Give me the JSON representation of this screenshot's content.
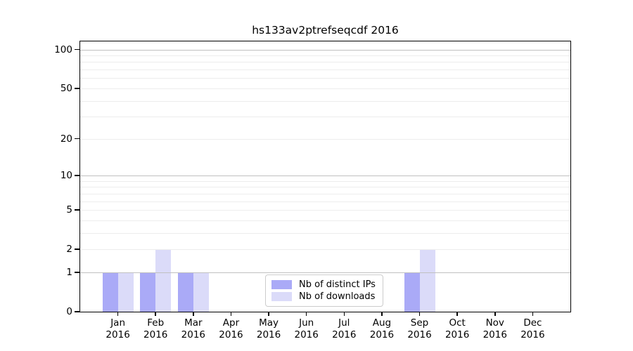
{
  "chart_data": {
    "type": "bar",
    "title": "hs133av2ptrefseqcdf 2016",
    "categories": [
      "Jan",
      "Feb",
      "Mar",
      "Apr",
      "May",
      "Jun",
      "Jul",
      "Aug",
      "Sep",
      "Oct",
      "Nov",
      "Dec"
    ],
    "x_year": "2016",
    "series": [
      {
        "name": "Nb of distinct IPs",
        "color": "#aaaaf7",
        "values": [
          1,
          1,
          1,
          0,
          0,
          0,
          0,
          0,
          1,
          0,
          0,
          0
        ]
      },
      {
        "name": "Nb of downloads",
        "color": "#dbdbf9",
        "values": [
          1,
          2,
          1,
          0,
          0,
          0,
          0,
          0,
          2,
          0,
          0,
          0
        ]
      }
    ],
    "y_axis": {
      "scale": "log1p",
      "tick_values": [
        0,
        1,
        2,
        5,
        10,
        20,
        50,
        100
      ],
      "major_grid_values": [
        1,
        10,
        100
      ],
      "minor_grid_values": [
        2,
        3,
        4,
        5,
        6,
        7,
        8,
        9,
        20,
        30,
        40,
        50,
        60,
        70,
        80,
        90
      ],
      "ylim": [
        0,
        115
      ]
    },
    "legend": {
      "position": "lower center",
      "items": [
        "Nb of distinct IPs",
        "Nb of downloads"
      ]
    },
    "colors": {
      "major_grid": "#c0c0c0",
      "minor_grid": "#ededed",
      "spine": "#000000",
      "legend_border": "#cccccc",
      "background": "#ffffff"
    },
    "grid": "horizontal, major and minor, behind-translucent-bars"
  }
}
